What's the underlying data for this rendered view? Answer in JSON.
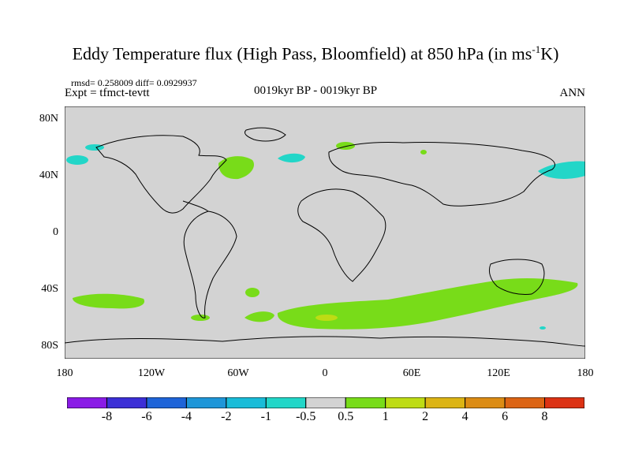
{
  "title": {
    "main": "Eddy Temperature flux (High Pass, Bloomfield) at 850 hPa (in ms",
    "sup": "-1",
    "tail": "K)"
  },
  "subtitle_left_top": "rmsd= 0.258009  diff= 0.0929937",
  "subtitle_left": "Expt = tfmct-tevtt",
  "subtitle_center": "0019kyr BP - 0019kyr BP",
  "subtitle_right": "ANN",
  "lat_labels": [
    "80N",
    "40N",
    "0",
    "40S",
    "80S"
  ],
  "lon_labels": [
    "180",
    "120W",
    "60W",
    "0",
    "60E",
    "120E",
    "180"
  ],
  "colorbar": {
    "labels": [
      "-8",
      "-6",
      "-4",
      "-2",
      "-1",
      "-0.5",
      "0.5",
      "1",
      "2",
      "4",
      "6",
      "8"
    ],
    "colors": [
      "#8a1be6",
      "#3c2fd6",
      "#1e64d8",
      "#1e96d8",
      "#19bcd8",
      "#22d6c8",
      "#d3d3d3",
      "#78dc19",
      "#bedc14",
      "#dcb414",
      "#dc8c14",
      "#dc6414",
      "#dc3214"
    ]
  },
  "colors": {
    "land_bg": "#d3d3d3",
    "positive": "#78dc19",
    "positive2": "#bedc14",
    "negative": "#22d6c8"
  }
}
